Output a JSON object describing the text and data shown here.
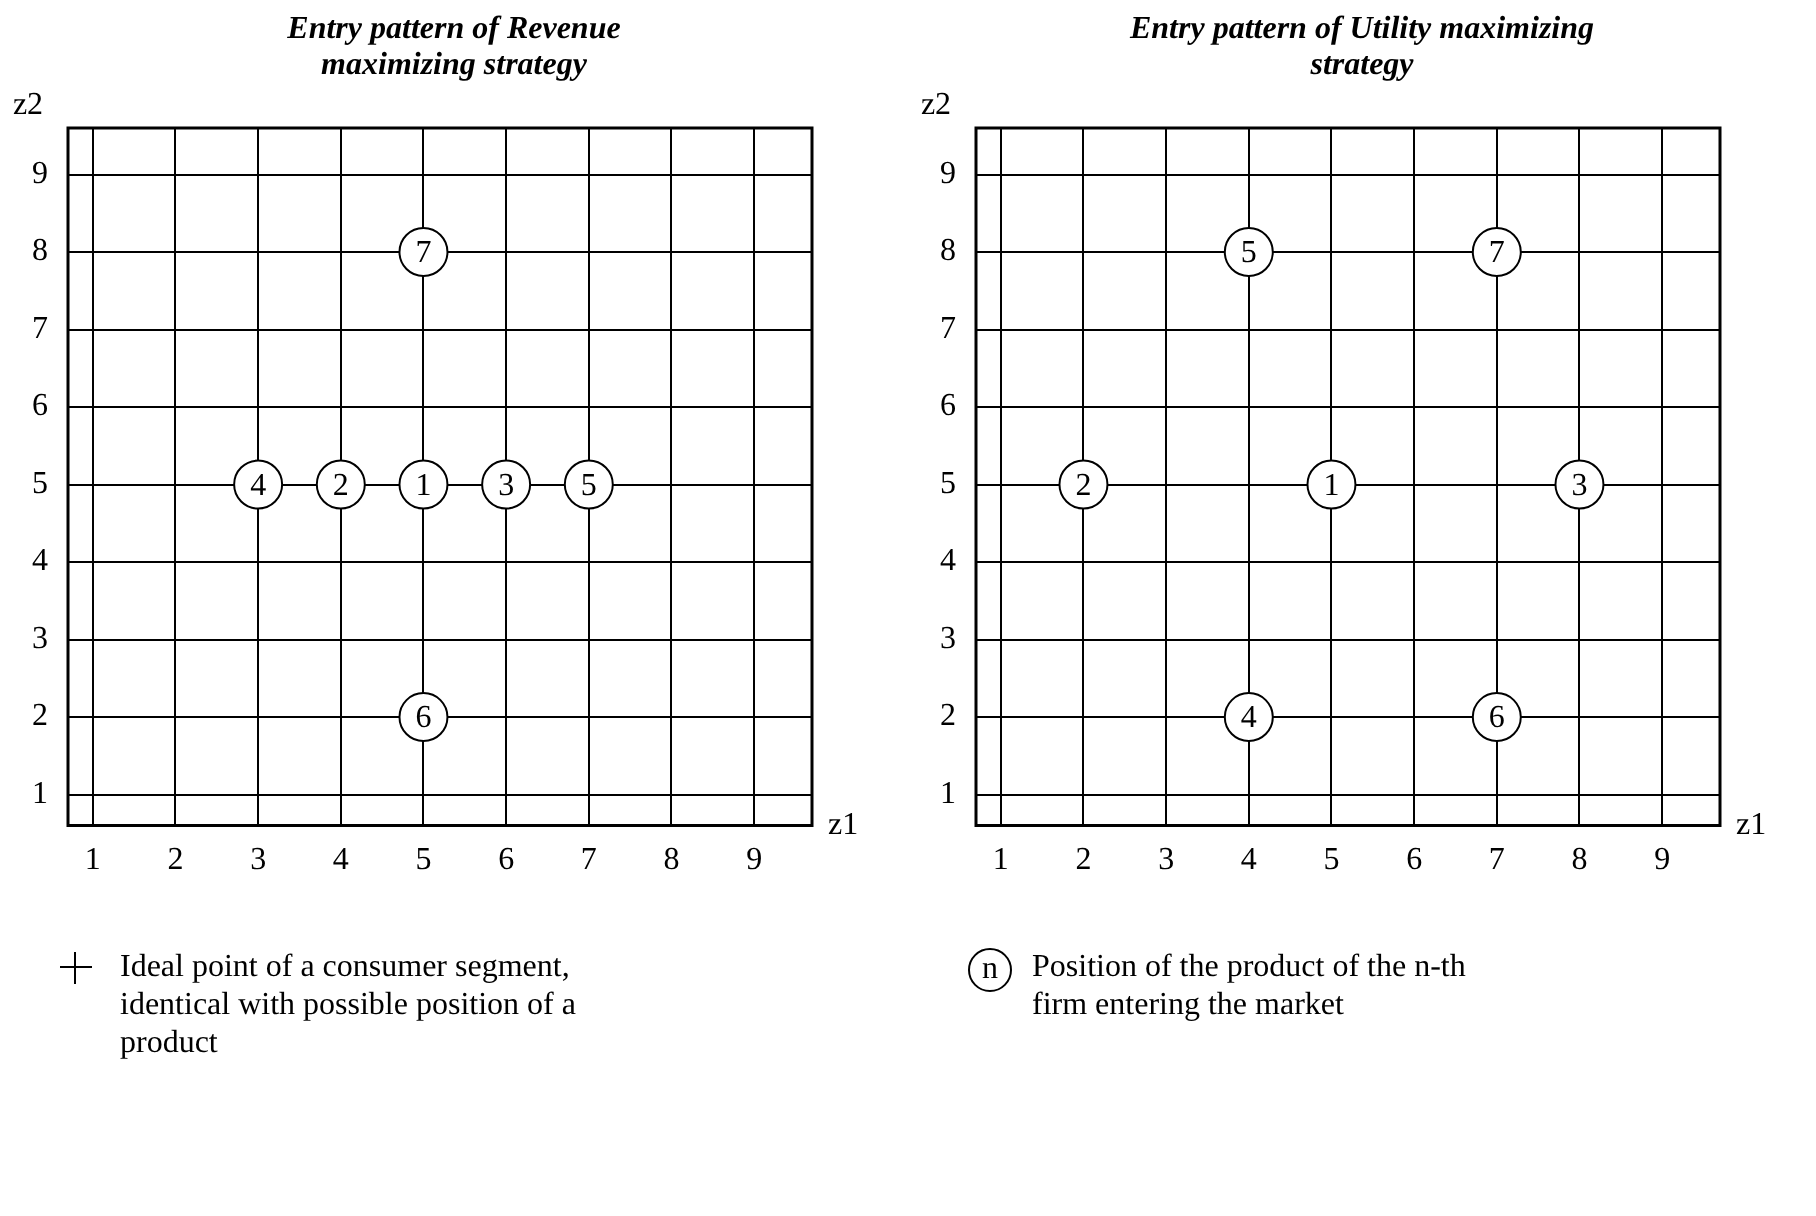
{
  "chart_data": [
    {
      "type": "scatter",
      "title": "Entry pattern of Revenue maximizing strategy",
      "xlabel": "z1",
      "ylabel": "z2",
      "series": [
        {
          "name": "1",
          "color": "#000000",
          "x": [
            5
          ],
          "values": [
            5
          ]
        },
        {
          "name": "2",
          "color": "#000000",
          "x": [
            4
          ],
          "values": [
            5
          ]
        },
        {
          "name": "3",
          "color": "#000000",
          "x": [
            6
          ],
          "values": [
            5
          ]
        },
        {
          "name": "4",
          "color": "#000000",
          "x": [
            3
          ],
          "values": [
            5
          ]
        },
        {
          "name": "5",
          "color": "#000000",
          "x": [
            7
          ],
          "values": [
            5
          ]
        },
        {
          "name": "6",
          "color": "#000000",
          "x": [
            5
          ],
          "values": [
            2
          ]
        },
        {
          "name": "7",
          "color": "#000000",
          "x": [
            5
          ],
          "values": [
            8
          ]
        }
      ],
      "xlim": [
        0.7,
        9.7
      ],
      "ylim": [
        0.6,
        9.6
      ],
      "xticks": [
        1,
        2,
        3,
        4,
        5,
        6,
        7,
        8,
        9
      ],
      "yticks": [
        1,
        2,
        3,
        4,
        5,
        6,
        7,
        8,
        9
      ],
      "grid": true,
      "marker": "circle",
      "annotations": [
        "Ideal point of a consumer segment, identical with possible position of a product"
      ]
    },
    {
      "type": "scatter",
      "title": "Entry pattern of Utility maximizing strategy",
      "xlabel": "z1",
      "ylabel": "z2",
      "series": [
        {
          "name": "1",
          "color": "#000000",
          "x": [
            5
          ],
          "values": [
            5
          ]
        },
        {
          "name": "2",
          "color": "#000000",
          "x": [
            2
          ],
          "values": [
            5
          ]
        },
        {
          "name": "3",
          "color": "#000000",
          "x": [
            8
          ],
          "values": [
            5
          ]
        },
        {
          "name": "4",
          "color": "#000000",
          "x": [
            4
          ],
          "values": [
            2
          ]
        },
        {
          "name": "5",
          "color": "#000000",
          "x": [
            4
          ],
          "values": [
            8
          ]
        },
        {
          "name": "6",
          "color": "#000000",
          "x": [
            7
          ],
          "values": [
            2
          ]
        },
        {
          "name": "7",
          "color": "#000000",
          "x": [
            7
          ],
          "values": [
            8
          ]
        }
      ],
      "xlim": [
        0.7,
        9.7
      ],
      "ylim": [
        0.6,
        9.6
      ],
      "xticks": [
        1,
        2,
        3,
        4,
        5,
        6,
        7,
        8,
        9
      ],
      "yticks": [
        1,
        2,
        3,
        4,
        5,
        6,
        7,
        8,
        9
      ],
      "grid": true,
      "marker": "circle",
      "annotations": [
        "n",
        "Position of the product of the n-th firm entering the market"
      ]
    }
  ]
}
